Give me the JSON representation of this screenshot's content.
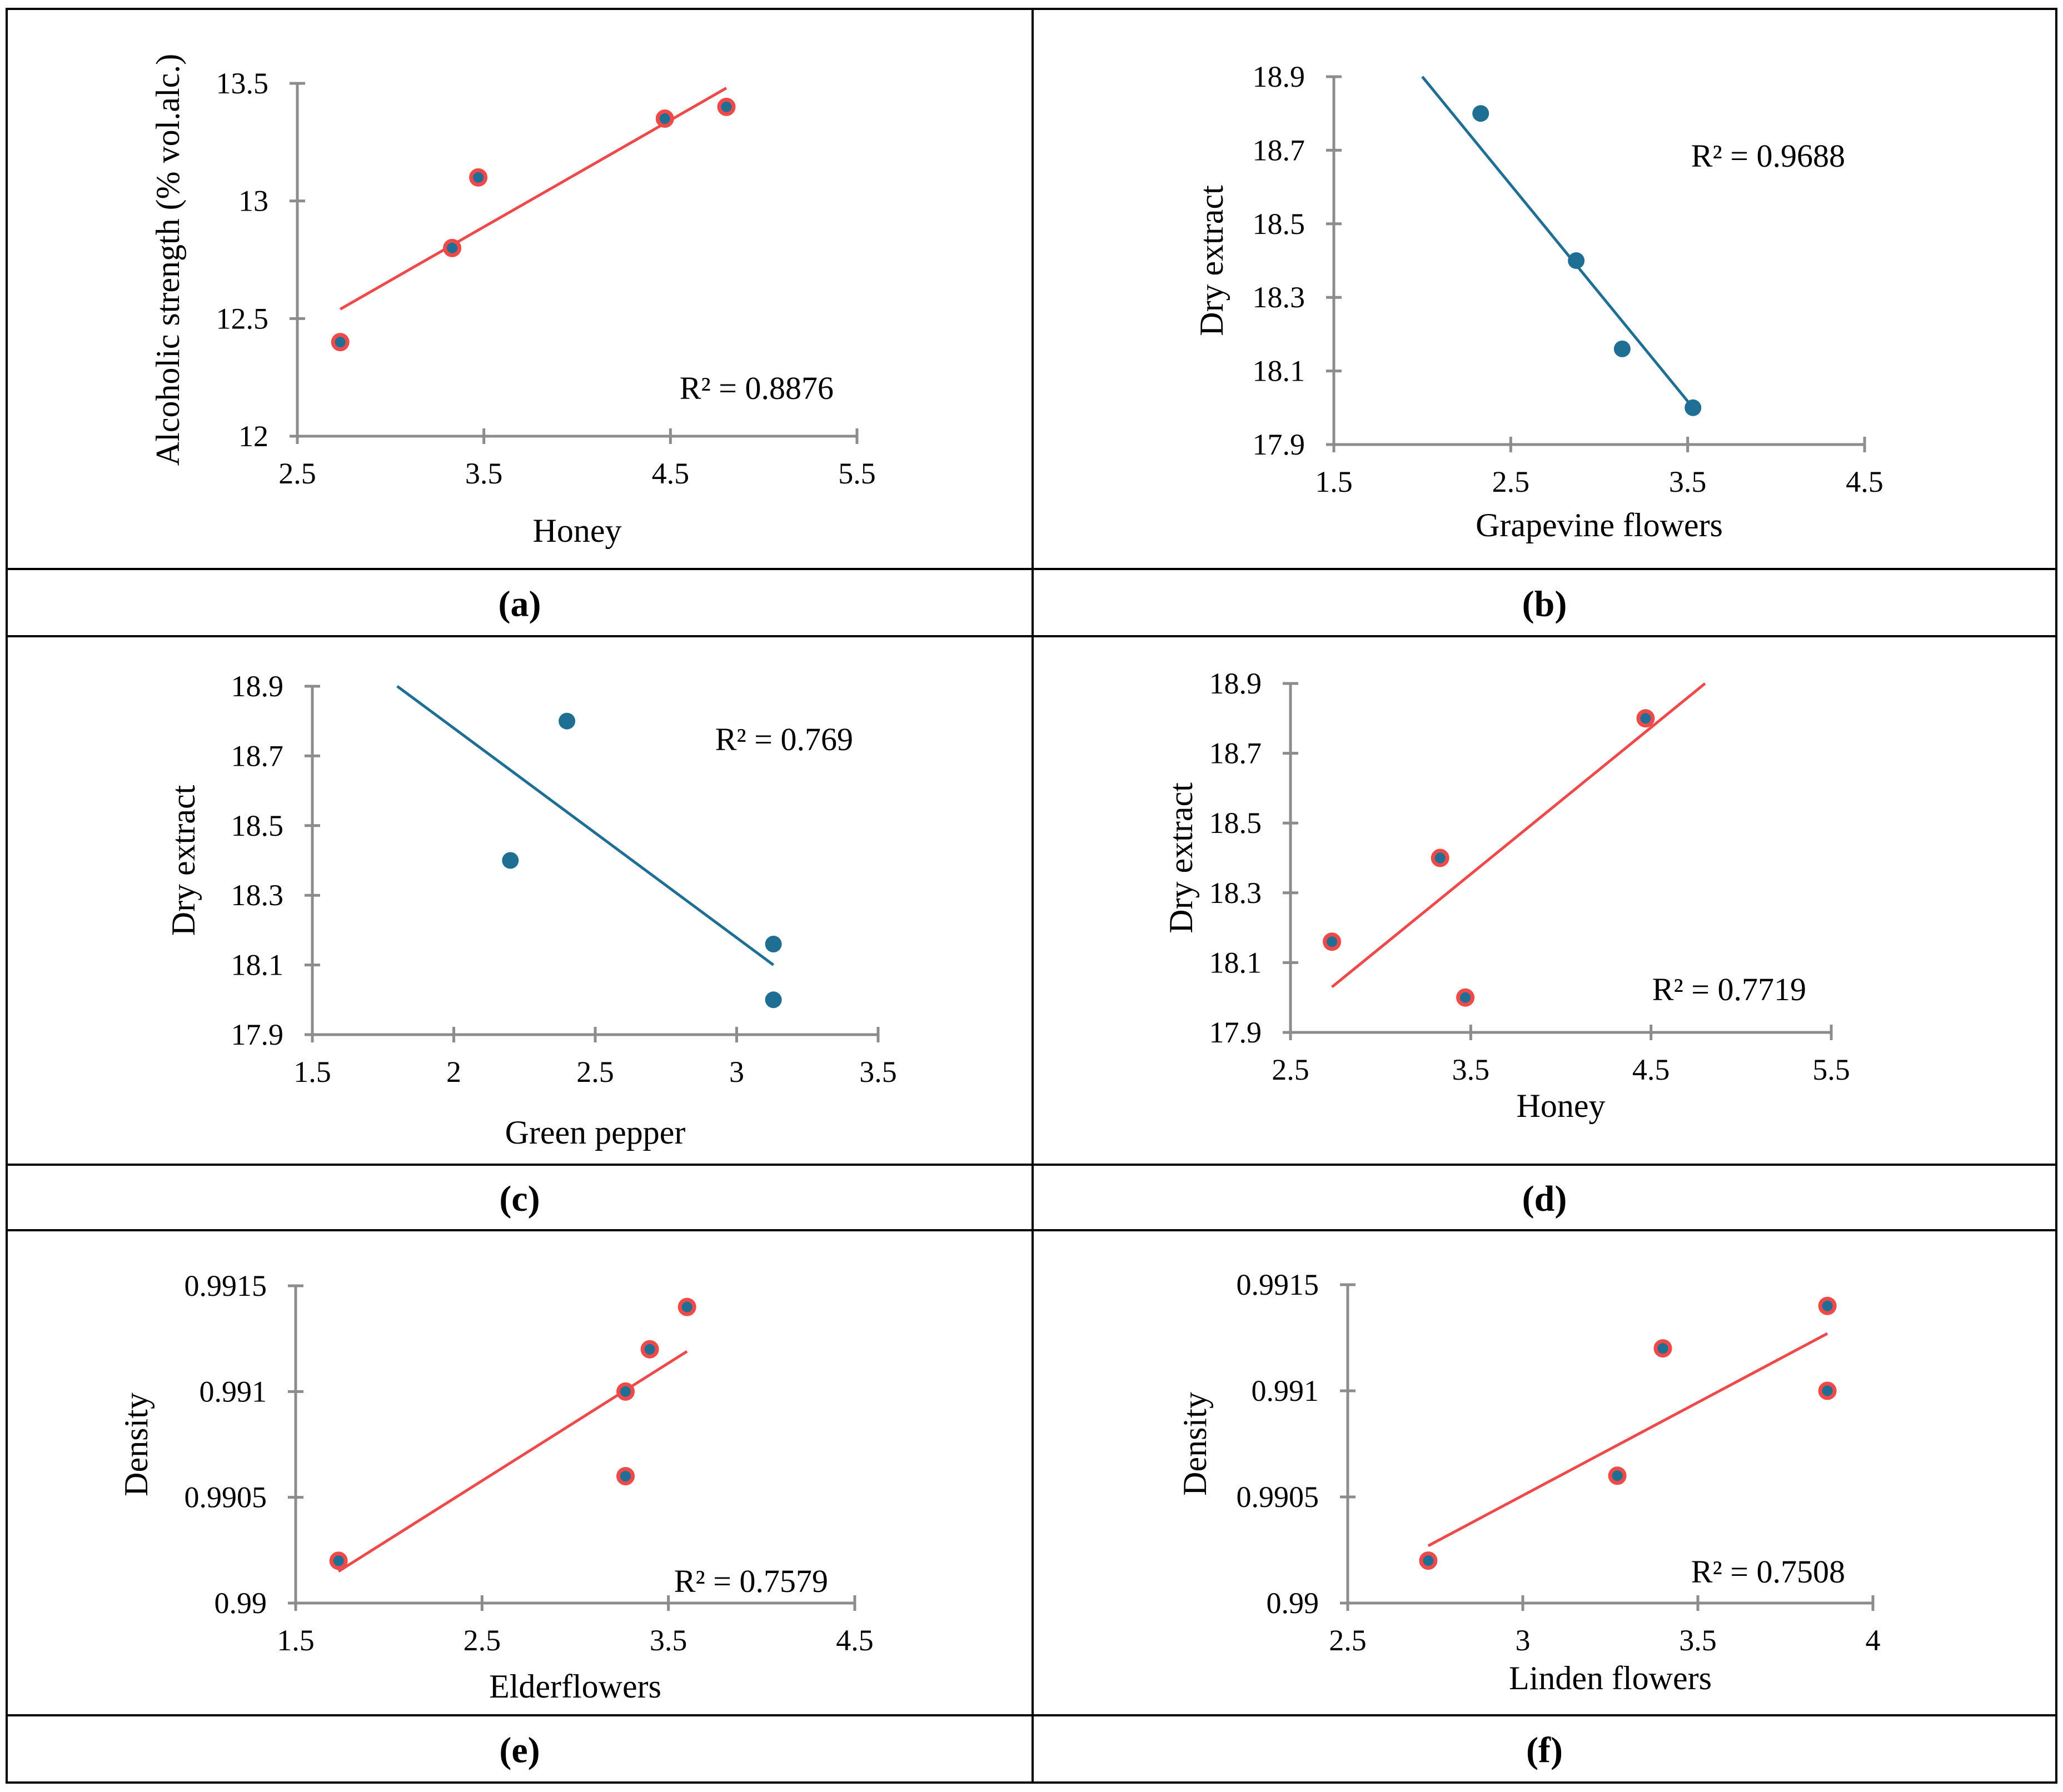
{
  "colors": {
    "teal": "#1f6f94",
    "red": "#ee4a4a",
    "axis": "#8c8c8c",
    "border": "#000000"
  },
  "chart_data": [
    {
      "id": "a",
      "panel_label": "(a)",
      "type": "scatter",
      "xlabel": "Honey",
      "ylabel": "Alcoholic strength (% vol.alc.)",
      "xlim": [
        2.5,
        5.5
      ],
      "ylim": [
        12,
        13.5
      ],
      "xticks": [
        "2.5",
        "3.5",
        "4.5",
        "5.5"
      ],
      "yticks": [
        "12",
        "12.5",
        "13",
        "13.5"
      ],
      "points": [
        {
          "x": 2.73,
          "y": 12.4
        },
        {
          "x": 3.33,
          "y": 12.8
        },
        {
          "x": 3.47,
          "y": 13.1
        },
        {
          "x": 4.47,
          "y": 13.35
        },
        {
          "x": 4.8,
          "y": 13.4
        }
      ],
      "trendline": {
        "x": [
          2.73,
          4.8
        ],
        "y": [
          12.54,
          13.48
        ]
      },
      "r2_label": "R² = 0.8876",
      "r2_position": "bottom-right",
      "marker": "red-outline",
      "line_color": "#ee4a4a"
    },
    {
      "id": "b",
      "panel_label": "(b)",
      "type": "scatter",
      "xlabel": "Grapevine flowers",
      "ylabel": "Dry extract",
      "xlim": [
        1.5,
        4.5
      ],
      "ylim": [
        17.9,
        18.9
      ],
      "xticks": [
        "1.5",
        "2.5",
        "3.5",
        "4.5"
      ],
      "yticks": [
        "17.9",
        "18.1",
        "18.3",
        "18.5",
        "18.7",
        "18.9"
      ],
      "points": [
        {
          "x": 2.33,
          "y": 18.8
        },
        {
          "x": 2.87,
          "y": 18.4
        },
        {
          "x": 3.13,
          "y": 18.16
        },
        {
          "x": 3.53,
          "y": 18.0
        }
      ],
      "trendline": {
        "x": [
          2.0,
          3.53
        ],
        "y": [
          18.9,
          18.0
        ]
      },
      "r2_label": "R² = 0.9688",
      "r2_position": "top-right",
      "marker": "teal",
      "line_color": "#1f6f94"
    },
    {
      "id": "c",
      "panel_label": "(c)",
      "type": "scatter",
      "xlabel": "Green pepper",
      "ylabel": "Dry extract",
      "xlim": [
        1.5,
        3.5
      ],
      "ylim": [
        17.9,
        18.9
      ],
      "xticks": [
        "1.5",
        "2",
        "2.5",
        "3",
        "3.5"
      ],
      "yticks": [
        "17.9",
        "18.1",
        "18.3",
        "18.5",
        "18.7",
        "18.9"
      ],
      "points": [
        {
          "x": 2.2,
          "y": 18.4
        },
        {
          "x": 2.4,
          "y": 18.8
        },
        {
          "x": 3.13,
          "y": 18.16
        },
        {
          "x": 3.13,
          "y": 18.0
        }
      ],
      "trendline": {
        "x": [
          1.8,
          3.13
        ],
        "y": [
          18.9,
          18.1
        ]
      },
      "r2_label": "R² = 0.769",
      "r2_position": "top-right",
      "marker": "teal",
      "line_color": "#1f6f94"
    },
    {
      "id": "d",
      "panel_label": "(d)",
      "type": "scatter",
      "xlabel": "Honey",
      "ylabel": "Dry extract",
      "xlim": [
        2.5,
        5.5
      ],
      "ylim": [
        17.9,
        18.9
      ],
      "xticks": [
        "2.5",
        "3.5",
        "4.5",
        "5.5"
      ],
      "yticks": [
        "17.9",
        "18.1",
        "18.3",
        "18.5",
        "18.7",
        "18.9"
      ],
      "points": [
        {
          "x": 2.73,
          "y": 18.16
        },
        {
          "x": 3.33,
          "y": 18.4
        },
        {
          "x": 3.47,
          "y": 18.0
        },
        {
          "x": 4.47,
          "y": 18.8
        }
      ],
      "trendline": {
        "x": [
          2.73,
          4.8
        ],
        "y": [
          18.03,
          18.9
        ]
      },
      "r2_label": "R² = 0.7719",
      "r2_position": "bottom-right",
      "marker": "red-outline",
      "line_color": "#ee4a4a"
    },
    {
      "id": "e",
      "panel_label": "(e)",
      "type": "scatter",
      "xlabel": "Elderflowers",
      "ylabel": "Density",
      "xlim": [
        1.5,
        4.5
      ],
      "ylim": [
        0.99,
        0.9915
      ],
      "xticks": [
        "1.5",
        "2.5",
        "3.5",
        "4.5"
      ],
      "yticks": [
        "0.99",
        "0.9905",
        "0.991",
        "0.9915"
      ],
      "points": [
        {
          "x": 1.73,
          "y": 0.9902
        },
        {
          "x": 3.27,
          "y": 0.9906
        },
        {
          "x": 3.27,
          "y": 0.991
        },
        {
          "x": 3.4,
          "y": 0.9912
        },
        {
          "x": 3.6,
          "y": 0.9914
        }
      ],
      "trendline": {
        "x": [
          1.73,
          3.6
        ],
        "y": [
          0.99015,
          0.99119
        ]
      },
      "r2_label": "R² = 0.7579",
      "r2_position": "bottom-right",
      "marker": "red-outline",
      "line_color": "#ee4a4a"
    },
    {
      "id": "f",
      "panel_label": "(f)",
      "type": "scatter",
      "xlabel": "Linden flowers",
      "ylabel": "Density",
      "xlim": [
        2.5,
        4
      ],
      "ylim": [
        0.99,
        0.9915
      ],
      "xticks": [
        "2.5",
        "3",
        "3.5",
        "4"
      ],
      "yticks": [
        "0.99",
        "0.9905",
        "0.991",
        "0.9915"
      ],
      "points": [
        {
          "x": 2.73,
          "y": 0.9902
        },
        {
          "x": 3.27,
          "y": 0.9906
        },
        {
          "x": 3.4,
          "y": 0.9912
        },
        {
          "x": 3.87,
          "y": 0.991
        },
        {
          "x": 3.87,
          "y": 0.9914
        }
      ],
      "trendline": {
        "x": [
          2.73,
          3.87
        ],
        "y": [
          0.99027,
          0.99127
        ]
      },
      "r2_label": "R² = 0.7508",
      "r2_position": "bottom-right",
      "marker": "red-outline",
      "line_color": "#ee4a4a"
    }
  ]
}
